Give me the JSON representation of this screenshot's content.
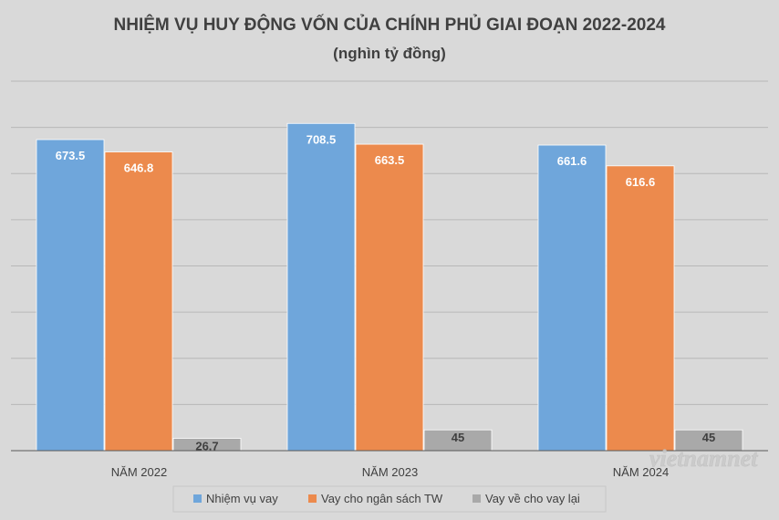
{
  "chart_data": {
    "type": "bar",
    "title": "NHIỆM VỤ HUY ĐỘNG VỐN CỦA CHÍNH PHỦ GIAI ĐOẠN 2022-2024",
    "subtitle": "(nghìn tỷ đồng)",
    "categories": [
      "NĂM 2022",
      "NĂM 2023",
      "NĂM 2024"
    ],
    "series": [
      {
        "name": "Nhiệm vụ vay",
        "values": [
          673.5,
          708.5,
          661.6
        ],
        "labels": [
          "673.5",
          "708.5",
          "661.6"
        ],
        "color": "#6fa6db"
      },
      {
        "name": "Vay cho ngân sách TW",
        "values": [
          646.8,
          663.5,
          616.6
        ],
        "labels": [
          "646.8",
          "663.5",
          "616.6"
        ],
        "color": "#ec8a4d"
      },
      {
        "name": "Vay về cho vay lại",
        "values": [
          26.7,
          45,
          45
        ],
        "labels": [
          "26.7",
          "45",
          "45"
        ],
        "color": "#a9a9a9"
      }
    ],
    "ylim": [
      0,
      800
    ],
    "grid": true,
    "legend_position": "bottom",
    "watermark": "vietnamnet"
  }
}
